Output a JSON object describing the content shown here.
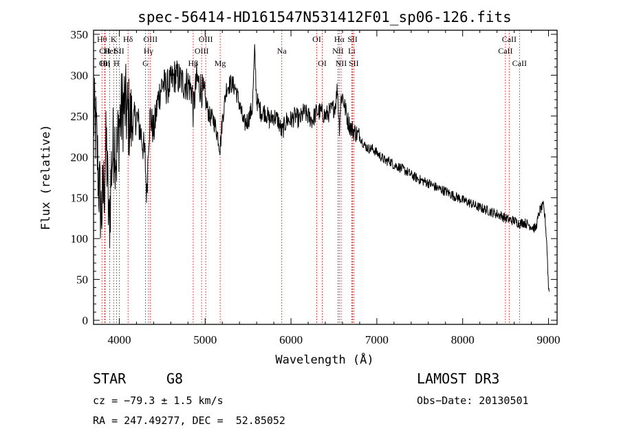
{
  "chart_data": {
    "type": "line",
    "title": "spec-56414-HD161547N531412F01_sp06-126.fits",
    "xlabel": "Wavelength (Å)",
    "ylabel": "Flux (relative)",
    "xlim": [
      3700,
      9100
    ],
    "ylim": [
      -5,
      355
    ],
    "x_ticks": [
      4000,
      5000,
      6000,
      7000,
      8000,
      9000
    ],
    "y_ticks": [
      0,
      50,
      100,
      150,
      200,
      250,
      300,
      350
    ],
    "series": [
      {
        "name": "flux",
        "x": [
          3700,
          3730,
          3760,
          3790,
          3820,
          3850,
          3880,
          3910,
          3940,
          3970,
          4000,
          4030,
          4060,
          4100,
          4150,
          4200,
          4250,
          4300,
          4320,
          4340,
          4360,
          4400,
          4450,
          4500,
          4550,
          4600,
          4650,
          4700,
          4750,
          4800,
          4850,
          4861,
          4900,
          4950,
          5000,
          5050,
          5100,
          5150,
          5175,
          5200,
          5250,
          5300,
          5350,
          5400,
          5450,
          5500,
          5550,
          5577,
          5600,
          5650,
          5700,
          5750,
          5800,
          5850,
          5893,
          5950,
          6000,
          6050,
          6100,
          6150,
          6200,
          6250,
          6300,
          6350,
          6400,
          6450,
          6500,
          6520,
          6540,
          6563,
          6580,
          6600,
          6630,
          6660,
          6700,
          6750,
          6800,
          6850,
          6900,
          6950,
          7000,
          7050,
          7100,
          7150,
          7200,
          7250,
          7300,
          7350,
          7400,
          7450,
          7500,
          7550,
          7600,
          7650,
          7700,
          7750,
          7800,
          7850,
          7900,
          7950,
          8000,
          8050,
          8100,
          8150,
          8200,
          8250,
          8300,
          8350,
          8400,
          8450,
          8498,
          8542,
          8600,
          8662,
          8700,
          8750,
          8800,
          8850,
          8900,
          8940,
          8960,
          8980,
          9000,
          9010
        ],
        "values": [
          250,
          230,
          170,
          130,
          160,
          215,
          110,
          190,
          225,
          200,
          240,
          255,
          265,
          250,
          240,
          250,
          230,
          200,
          150,
          220,
          250,
          230,
          270,
          290,
          285,
          290,
          300,
          295,
          290,
          290,
          280,
          255,
          295,
          285,
          270,
          250,
          245,
          225,
          210,
          245,
          285,
          290,
          285,
          265,
          240,
          245,
          260,
          330,
          270,
          255,
          255,
          245,
          250,
          245,
          230,
          245,
          245,
          250,
          245,
          255,
          250,
          245,
          255,
          255,
          250,
          255,
          260,
          265,
          285,
          235,
          270,
          275,
          260,
          245,
          235,
          230,
          225,
          215,
          210,
          210,
          205,
          200,
          195,
          195,
          190,
          188,
          185,
          182,
          178,
          175,
          172,
          170,
          168,
          165,
          162,
          160,
          158,
          155,
          152,
          150,
          147,
          145,
          143,
          140,
          138,
          136,
          134,
          132,
          130,
          128,
          125,
          123,
          122,
          118,
          120,
          118,
          115,
          112,
          135,
          140,
          125,
          95,
          40,
          35
        ]
      }
    ],
    "line_markers": [
      {
        "label": "Hθ",
        "x": 3798,
        "row": 0
      },
      {
        "label": "CII",
        "x": 3830,
        "row": 1
      },
      {
        "label": "OII",
        "x": 3830,
        "row": 2
      },
      {
        "label": "Hη",
        "x": 3835,
        "row": 2
      },
      {
        "label": "HeI",
        "x": 3889,
        "row": 1
      },
      {
        "label": "K",
        "x": 3934,
        "row": 0
      },
      {
        "label": "H",
        "x": 3968,
        "row": 2
      },
      {
        "label": "SII",
        "x": 4000,
        "row": 1
      },
      {
        "label": "Hδ",
        "x": 4102,
        "row": 0
      },
      {
        "label": "OIII",
        "x": 4363,
        "row": 0
      },
      {
        "label": "Hγ",
        "x": 4340,
        "row": 1
      },
      {
        "label": "G",
        "x": 4305,
        "row": 2
      },
      {
        "label": "Hβ",
        "x": 4861,
        "row": 2
      },
      {
        "label": "OIII",
        "x": 4959,
        "row": 1
      },
      {
        "label": "OIII",
        "x": 5007,
        "row": 0
      },
      {
        "label": "Mg",
        "x": 5175,
        "row": 2
      },
      {
        "label": "Na",
        "x": 5893,
        "row": 1
      },
      {
        "label": "OI",
        "x": 6300,
        "row": 0
      },
      {
        "label": "OI",
        "x": 6364,
        "row": 2
      },
      {
        "label": "Hα",
        "x": 6563,
        "row": 0
      },
      {
        "label": "NII",
        "x": 6548,
        "row": 1
      },
      {
        "label": "NII",
        "x": 6584,
        "row": 2
      },
      {
        "label": "SII",
        "x": 6717,
        "row": 0
      },
      {
        "label": "Li",
        "x": 6708,
        "row": 1
      },
      {
        "label": "SII",
        "x": 6731,
        "row": 2
      },
      {
        "label": "CaII",
        "x": 8498,
        "row": 1
      },
      {
        "label": "CaII",
        "x": 8542,
        "row": 0
      },
      {
        "label": "CaII",
        "x": 8662,
        "row": 2
      }
    ]
  },
  "info": {
    "object_class": "STAR",
    "subclass": "G8",
    "survey": "LAMOST DR3",
    "redshift_text": "cz = −79.3 ± 1.5 km/s",
    "obs_date_text": "Obs−Date: 20130501",
    "coords_text": "RA = 247.49277, DEC =  52.85052"
  }
}
